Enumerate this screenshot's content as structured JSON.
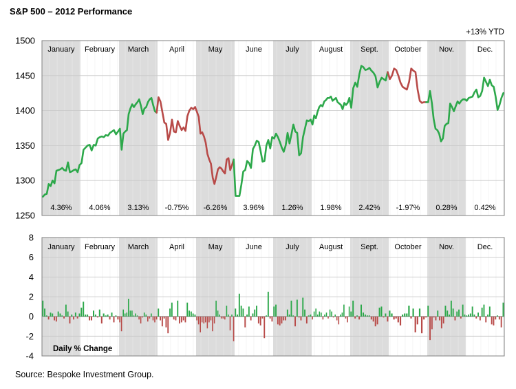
{
  "title": "S&P 500 – 2012 Performance",
  "source": "Source:  Bespoke Investment Group.",
  "colors": {
    "up": "#2ca84a",
    "down": "#b84a48",
    "shade": "#dcdcdc",
    "grid": "#c8c8c8"
  },
  "chart_data": [
    {
      "type": "line",
      "ytd_label": "+13% YTD",
      "ylim": [
        1250,
        1500
      ],
      "yticks": [
        1250,
        1300,
        1350,
        1400,
        1450,
        1500
      ],
      "months": [
        "January",
        "February",
        "March",
        "April",
        "May",
        "June",
        "July",
        "August",
        "Sept.",
        "October",
        "Nov.",
        "Dec."
      ],
      "monthly_change": [
        "4.36%",
        "4.06%",
        "3.13%",
        "-0.75%",
        "-6.26%",
        "3.96%",
        "1.26%",
        "1.98%",
        "2.42%",
        "-1.97%",
        "0.28%",
        "0.42%"
      ],
      "series": [
        {
          "points_per_month": [
            [
              1277,
              1280,
              1281,
              1295,
              1292,
              1300,
              1296,
              1314,
              1315,
              1316,
              1318,
              1315,
              1314,
              1326,
              1312,
              1313,
              1315,
              1316,
              1312,
              1322
            ],
            [
              1325,
              1344,
              1347,
              1350,
              1351,
              1343,
              1351,
              1350,
              1360,
              1362,
              1363,
              1362,
              1365,
              1364,
              1368,
              1370,
              1372,
              1366,
              1370
            ],
            [
              1374,
              1344,
              1367,
              1370,
              1372,
              1395,
              1403,
              1409,
              1405,
              1409,
              1412,
              1416,
              1407,
              1395,
              1403,
              1405,
              1412,
              1416,
              1418,
              1408,
              1399,
              1397
            ],
            [
              1419,
              1413,
              1398,
              1383,
              1381,
              1358,
              1368,
              1387,
              1370,
              1369,
              1385,
              1378,
              1372,
              1376,
              1371,
              1392,
              1400,
              1404,
              1402,
              1405
            ],
            [
              1398,
              1391,
              1367,
              1369,
              1363,
              1354,
              1338,
              1330,
              1324,
              1304,
              1295,
              1305,
              1316,
              1319,
              1317,
              1313,
              1310,
              1330,
              1332,
              1315,
              1322,
              1330
            ],
            [
              1278,
              1278,
              1278,
              1294,
              1313,
              1315,
              1328,
              1325,
              1318,
              1345,
              1350,
              1357,
              1355,
              1342,
              1327,
              1328,
              1350,
              1358,
              1346,
              1362
            ],
            [
              1360,
              1367,
              1362,
              1355,
              1347,
              1341,
              1350,
              1368,
              1353,
              1366,
              1380,
              1370,
              1368,
              1336,
              1339,
              1362,
              1374,
              1386,
              1385,
              1387
            ],
            [
              1380,
              1393,
              1389,
              1398,
              1405,
              1408,
              1406,
              1413,
              1415,
              1418,
              1418,
              1420,
              1414,
              1416,
              1418,
              1412,
              1410,
              1408,
              1402,
              1411,
              1408,
              1411,
              1418
            ],
            [
              1404,
              1432,
              1440,
              1434,
              1452,
              1464,
              1462,
              1458,
              1459,
              1461,
              1457,
              1454,
              1449,
              1433,
              1441,
              1447,
              1445,
              1443,
              1455
            ],
            [
              1445,
              1450,
              1460,
              1458,
              1450,
              1440,
              1434,
              1432,
              1430,
              1441,
              1460,
              1457,
              1455,
              1430,
              1414,
              1411,
              1412,
              1412
            ],
            [
              1412,
              1428,
              1411,
              1388,
              1374,
              1372,
              1367,
              1356,
              1360,
              1378,
              1381,
              1382,
              1410,
              1405,
              1399,
              1406,
              1413,
              1410,
              1414,
              1416,
              1416
            ],
            [
              1414,
              1418,
              1419,
              1420,
              1426,
              1430,
              1419,
              1421,
              1428,
              1447,
              1441,
              1435,
              1444,
              1436,
              1434,
              1420,
              1401,
              1408,
              1418,
              1425
            ]
          ]
        }
      ]
    },
    {
      "type": "bar",
      "label": "Daily % Change",
      "ylim": [
        -4,
        8
      ],
      "yticks": [
        -4,
        -2,
        0,
        2,
        4,
        6,
        8
      ],
      "months": [
        "January",
        "February",
        "March",
        "April",
        "May",
        "June",
        "July",
        "August",
        "Sept.",
        "October",
        "Nov.",
        "Dec."
      ],
      "values_per_month": [
        [
          1.6,
          0.8,
          0.1,
          -0.3,
          0.4,
          0.3,
          -0.4,
          -0.5,
          0.5,
          0.3,
          0.1,
          -0.2,
          1.2,
          0.5,
          -0.7,
          0.2,
          -0.3,
          0.4,
          -0.2,
          0.3
        ],
        [
          0.9,
          1.5,
          0.2,
          0.2,
          -0.4,
          -0.4,
          0.6,
          0.2,
          -0.1,
          0.7,
          -0.7,
          0.3,
          0.1,
          0.2,
          -0.3,
          0.4,
          -0.6,
          0.1,
          -0.3
        ],
        [
          -0.6,
          -1.5,
          0.7,
          0.3,
          0.4,
          1.8,
          0.6,
          0.6,
          0.1,
          0.3,
          0.1,
          -0.3,
          -0.7,
          -0.1,
          0.4,
          0.2,
          -0.5,
          -0.2,
          0.3,
          -0.4,
          -0.6,
          -0.3
        ],
        [
          0.8,
          -0.4,
          -1.0,
          -0.2,
          -1.1,
          -1.7,
          0.8,
          1.4,
          -0.3,
          -0.4,
          1.6,
          -0.7,
          -0.6,
          -0.4,
          -0.6,
          1.4,
          0.6,
          0.5,
          0.3,
          0.2
        ],
        [
          -0.4,
          -0.8,
          -1.6,
          -0.6,
          -0.7,
          -0.6,
          -1.2,
          -0.6,
          -0.4,
          -1.5,
          -0.7,
          1.6,
          0.6,
          0.2,
          -0.2,
          -0.2,
          -0.3,
          1.1,
          0.2,
          -1.4,
          0.2,
          -2.5
        ],
        [
          0.8,
          0.2,
          2.3,
          1.1,
          0.8,
          -1.1,
          0.2,
          1.0,
          -0.4,
          0.3,
          0.7,
          1.1,
          -0.7,
          -0.9,
          -0.2,
          -2.2,
          0.1,
          2.5,
          -0.2,
          -0.5
        ],
        [
          1.0,
          1.2,
          -0.8,
          -0.9,
          -0.7,
          -0.4,
          -0.4,
          0.7,
          0.2,
          1.6,
          0.1,
          -1.0,
          1.7,
          -0.1,
          -0.4,
          1.9,
          0.7,
          -0.7,
          0.1,
          0.2
        ],
        [
          -0.3,
          0.5,
          0.8,
          0.2,
          0.5,
          0.4,
          -0.3,
          0.2,
          0.4,
          -0.2,
          0.7,
          0.5,
          -0.1,
          0.2,
          -0.4,
          -0.8,
          0.2,
          0.4,
          1.2,
          -0.2,
          -0.6,
          1.0
        ],
        [
          0.5,
          1.6,
          -0.2,
          0.1,
          -0.3,
          1.2,
          0.4,
          0.2,
          0.1,
          0.1,
          -0.3,
          -0.5,
          -1.0,
          -0.8,
          0.9,
          1.0,
          -0.1,
          0.3,
          -0.5
        ],
        [
          0.6,
          0.3,
          -0.3,
          -0.2,
          -0.6,
          -0.9,
          0.2,
          0.3,
          0.3,
          1.1,
          -0.2,
          0.8,
          -1.6,
          -0.8,
          0.8,
          -1.7,
          -0.3,
          -0.1
        ],
        [
          1.1,
          -2.4,
          -1.3,
          -0.1,
          -0.4,
          0.6,
          -0.4,
          -1.2,
          -0.7,
          1.1,
          0.6,
          0.2,
          1.6,
          0.8,
          -0.4,
          0.5,
          0.7,
          -0.2,
          1.2,
          0.2
        ],
        [
          0.1,
          0.2,
          0.3,
          1.0,
          0.2,
          -0.2,
          0.4,
          -0.4,
          0.9,
          1.2,
          -0.6,
          0.2,
          1.0,
          -0.8,
          -0.9,
          -0.3,
          0.1,
          -0.3,
          -1.1,
          1.4
        ]
      ]
    }
  ]
}
